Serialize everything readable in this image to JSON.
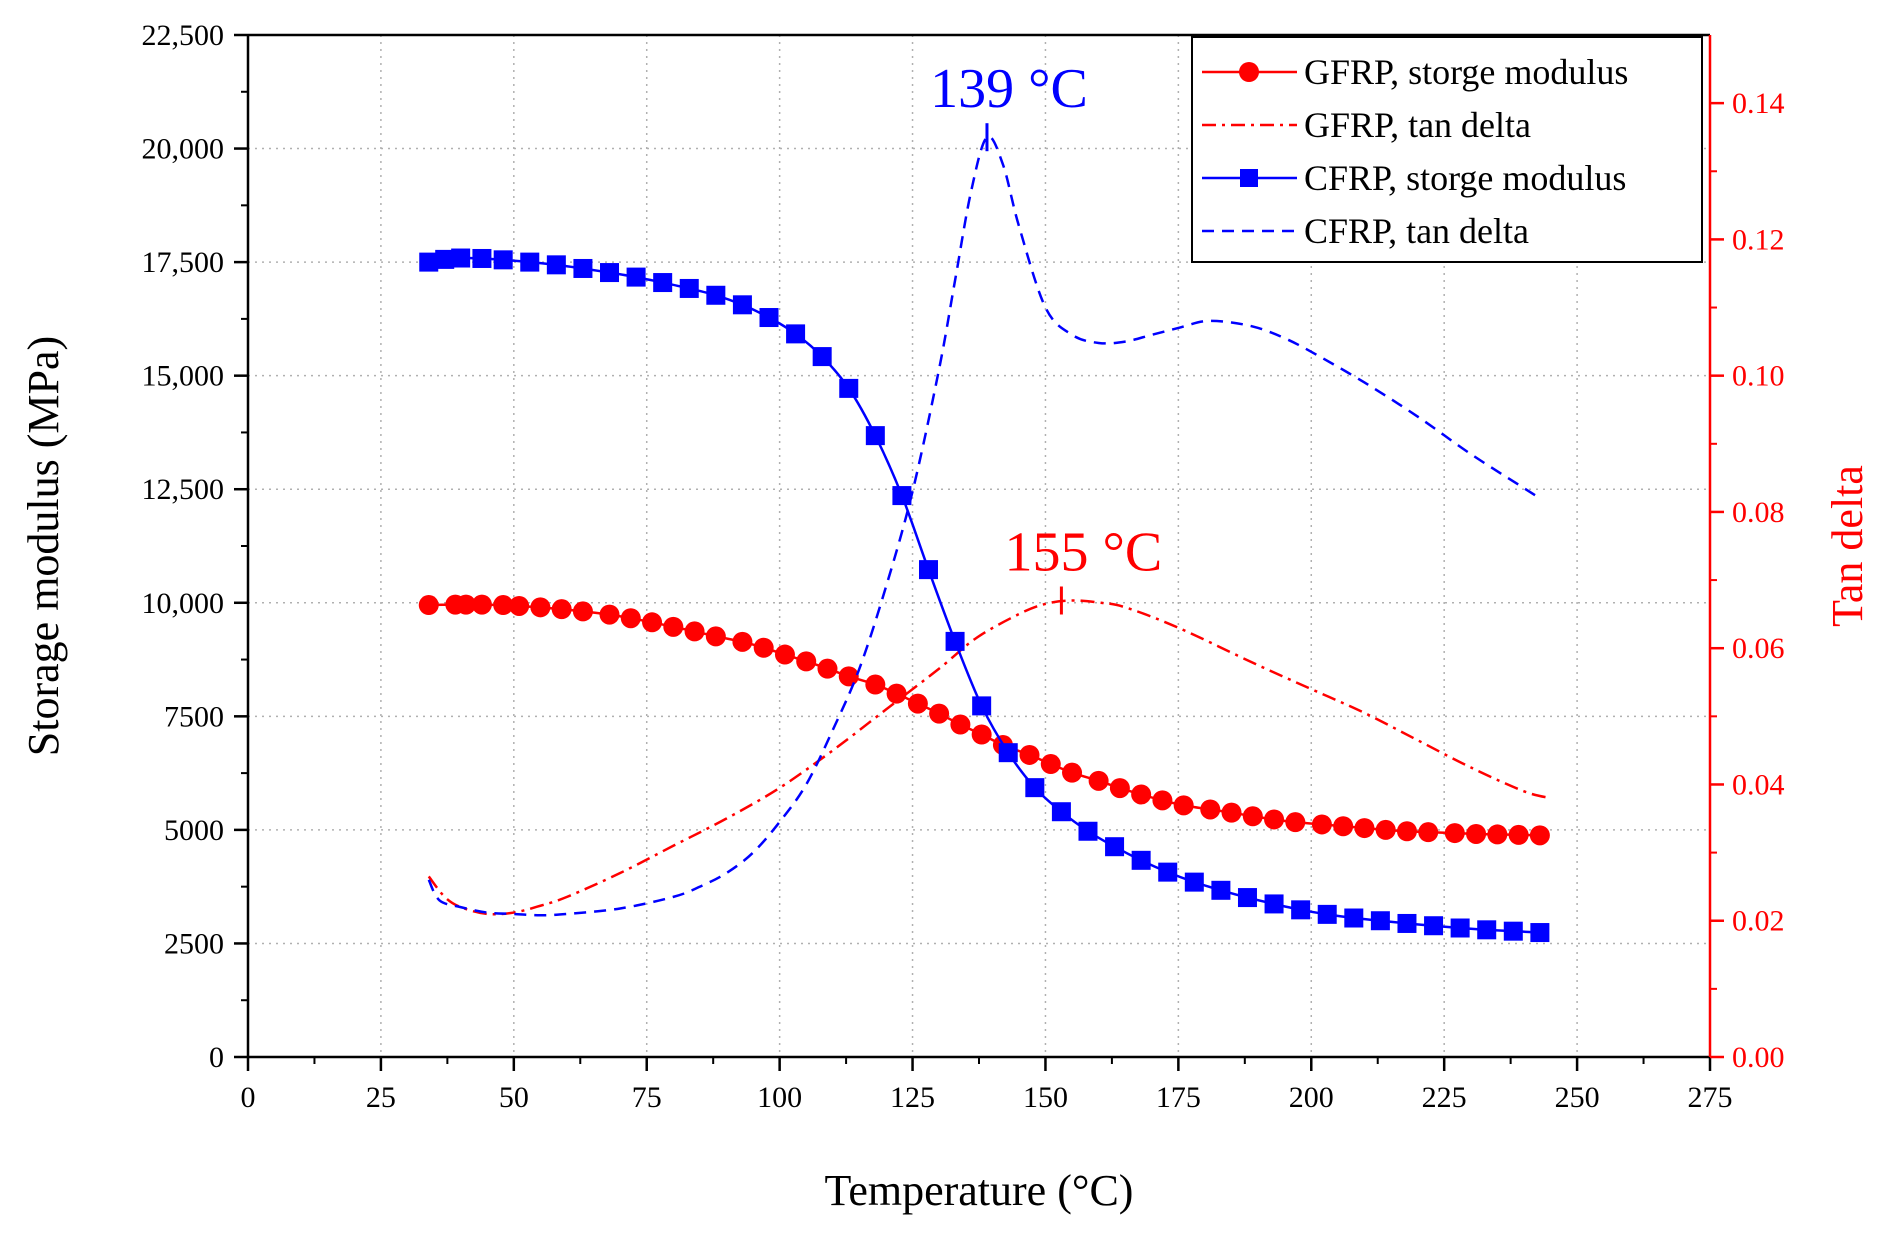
{
  "chart_data": {
    "type": "line",
    "xlabel": "Temperature (°C)",
    "ylabel_left": "Storage modulus (MPa)",
    "ylabel_right": "Tan delta",
    "xlim": [
      0,
      275
    ],
    "ylim_left": [
      0,
      22500
    ],
    "ylim_right": [
      0,
      0.15
    ],
    "x_ticks": [
      0,
      25,
      50,
      75,
      100,
      125,
      150,
      175,
      200,
      225,
      250,
      275
    ],
    "x_tick_labels": [
      "0",
      "25",
      "50",
      "75",
      "100",
      "125",
      "150",
      "175",
      "200",
      "225",
      "250",
      "275"
    ],
    "y_left_ticks": [
      0,
      2500,
      5000,
      7500,
      10000,
      12500,
      15000,
      17500,
      20000,
      22500
    ],
    "y_left_tick_labels": [
      "0",
      "2500",
      "5000",
      "7500",
      "10,000",
      "12,500",
      "15,000",
      "17,500",
      "20,000",
      "22,500"
    ],
    "y_right_ticks": [
      0,
      0.02,
      0.04,
      0.06,
      0.08,
      0.1,
      0.12,
      0.14
    ],
    "y_right_tick_labels": [
      "0.00",
      "0.02",
      "0.04",
      "0.06",
      "0.08",
      "0.10",
      "0.12",
      "0.14"
    ],
    "grid": true,
    "legend_position": "top-right",
    "colors": {
      "gfrp": "#ff0000",
      "cfrp": "#0000ff",
      "axis": "#000000",
      "right_axis": "#ff0000",
      "grid": "#b0b0b0"
    },
    "series": [
      {
        "name": "GFRP, storge modulus",
        "axis": "left",
        "style": "line-circle",
        "color": "#ff0000",
        "x": [
          34,
          39,
          41,
          44,
          48,
          51,
          55,
          59,
          63,
          68,
          72,
          76,
          80,
          84,
          88,
          93,
          97,
          101,
          105,
          109,
          113,
          118,
          122,
          126,
          130,
          134,
          138,
          142,
          147,
          151,
          155,
          160,
          164,
          168,
          172,
          176,
          181,
          185,
          189,
          193,
          197,
          202,
          206,
          210,
          214,
          218,
          222,
          227,
          231,
          235,
          239,
          243
        ],
        "y": [
          9950,
          9960,
          9960,
          9960,
          9950,
          9930,
          9900,
          9860,
          9810,
          9740,
          9660,
          9570,
          9470,
          9370,
          9260,
          9140,
          9010,
          8860,
          8710,
          8550,
          8380,
          8200,
          8000,
          7780,
          7560,
          7320,
          7100,
          6870,
          6650,
          6450,
          6260,
          6080,
          5920,
          5780,
          5650,
          5540,
          5450,
          5380,
          5300,
          5230,
          5170,
          5120,
          5080,
          5040,
          5000,
          4970,
          4950,
          4930,
          4910,
          4900,
          4890,
          4880
        ]
      },
      {
        "name": "GFRP, tan delta",
        "axis": "right",
        "style": "dash-dot",
        "color": "#ff0000",
        "x": [
          34,
          37,
          40,
          45,
          50,
          55,
          60,
          70,
          80,
          90,
          100,
          110,
          120,
          130,
          137,
          145,
          150,
          155,
          160,
          165,
          175,
          190,
          200,
          210,
          220,
          230,
          240,
          245
        ],
        "y": [
          0.0265,
          0.0235,
          0.022,
          0.021,
          0.0212,
          0.0222,
          0.0235,
          0.027,
          0.031,
          0.035,
          0.0395,
          0.045,
          0.051,
          0.057,
          0.0615,
          0.065,
          0.0665,
          0.067,
          0.0667,
          0.066,
          0.063,
          0.0575,
          0.054,
          0.0505,
          0.0465,
          0.0425,
          0.039,
          0.038
        ]
      },
      {
        "name": "CFRP, storge modulus",
        "axis": "left",
        "style": "line-square",
        "color": "#0000ff",
        "x": [
          34,
          37,
          40,
          44,
          48,
          53,
          58,
          63,
          68,
          73,
          78,
          83,
          88,
          93,
          98,
          103,
          108,
          113,
          118,
          123,
          128,
          133,
          138,
          143,
          148,
          153,
          158,
          163,
          168,
          173,
          178,
          183,
          188,
          193,
          198,
          203,
          208,
          213,
          218,
          223,
          228,
          233,
          238,
          243
        ],
        "y": [
          17500,
          17560,
          17590,
          17580,
          17550,
          17500,
          17440,
          17360,
          17270,
          17170,
          17050,
          16920,
          16770,
          16560,
          16280,
          15920,
          15420,
          14720,
          13680,
          12360,
          10730,
          9150,
          7730,
          6700,
          5930,
          5400,
          4970,
          4630,
          4330,
          4070,
          3850,
          3670,
          3510,
          3370,
          3240,
          3140,
          3060,
          3000,
          2940,
          2890,
          2840,
          2800,
          2770,
          2740
        ]
      },
      {
        "name": "CFRP, tan delta",
        "axis": "right",
        "style": "dash",
        "color": "#0000ff",
        "x": [
          34,
          36,
          40,
          45,
          50,
          55,
          60,
          70,
          80,
          85,
          90,
          95,
          100,
          105,
          110,
          115,
          120,
          125,
          130,
          133,
          136,
          139,
          142,
          145,
          150,
          155,
          160,
          165,
          170,
          175,
          180,
          185,
          190,
          195,
          200,
          210,
          220,
          230,
          240,
          243
        ],
        "y": [
          0.026,
          0.023,
          0.022,
          0.0212,
          0.021,
          0.0208,
          0.021,
          0.0218,
          0.0235,
          0.025,
          0.027,
          0.03,
          0.0345,
          0.04,
          0.048,
          0.057,
          0.069,
          0.083,
          0.101,
          0.114,
          0.127,
          0.135,
          0.131,
          0.122,
          0.11,
          0.106,
          0.1048,
          0.105,
          0.106,
          0.107,
          0.108,
          0.1078,
          0.107,
          0.1055,
          0.1035,
          0.099,
          0.094,
          0.0885,
          0.0835,
          0.082
        ]
      }
    ],
    "annotations": [
      {
        "text": "139 °C",
        "x": 139,
        "axis": "right",
        "y": 0.135,
        "color": "#0000ff"
      },
      {
        "text": "155 °C",
        "x": 153,
        "axis": "right",
        "y": 0.067,
        "color": "#ff0000"
      }
    ]
  }
}
